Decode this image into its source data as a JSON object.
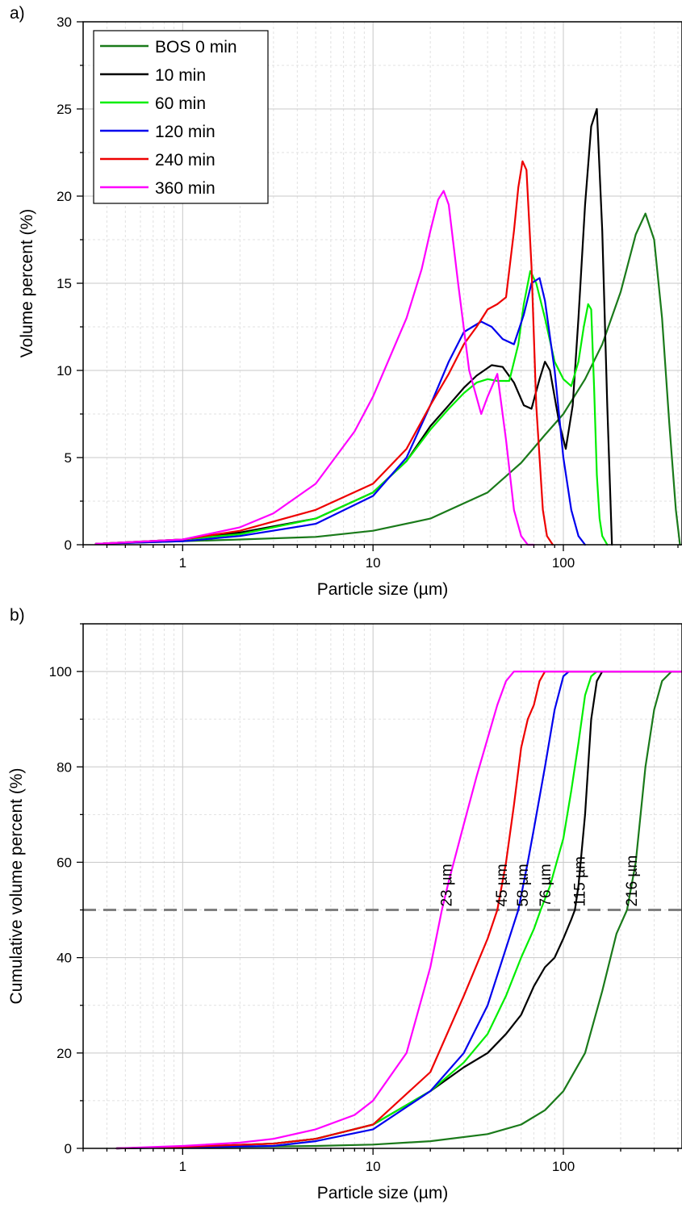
{
  "chart_data": [
    {
      "panel_label": "a)",
      "type": "line",
      "xlabel": "Particle size (µm)",
      "ylabel": "Volume percent (%)",
      "xscale": "log",
      "xlim": [
        0.3,
        420
      ],
      "ylim": [
        0,
        30
      ],
      "xticks": [
        1,
        10,
        100
      ],
      "xtick_labels": [
        "1",
        "10",
        "100"
      ],
      "yticks": [
        0,
        5,
        10,
        15,
        20,
        25,
        30
      ],
      "ytick_labels": [
        "0",
        "5",
        "10",
        "15",
        "20",
        "25",
        "30"
      ],
      "grid": true,
      "legend_position": "top-left",
      "series": [
        {
          "name": "BOS 0 min",
          "color": "#1a7a1a",
          "x": [
            0.35,
            1,
            2,
            5,
            10,
            20,
            40,
            60,
            80,
            100,
            130,
            160,
            200,
            240,
            270,
            300,
            330,
            360,
            390,
            410
          ],
          "y": [
            0.05,
            0.2,
            0.3,
            0.45,
            0.8,
            1.5,
            3,
            4.7,
            6.3,
            7.5,
            9.5,
            11.5,
            14.5,
            17.8,
            19,
            17.5,
            13,
            7,
            2,
            0
          ]
        },
        {
          "name": "10 min",
          "color": "#000000",
          "x": [
            0.35,
            1,
            2,
            5,
            10,
            15,
            20,
            25,
            30,
            35,
            42,
            48,
            55,
            62,
            68,
            75,
            80,
            85,
            95,
            103,
            112,
            120,
            130,
            140,
            150,
            160,
            170,
            180
          ],
          "y": [
            0.05,
            0.3,
            0.7,
            1.5,
            3,
            4.8,
            6.8,
            8,
            9,
            9.7,
            10.3,
            10.2,
            9.3,
            8,
            7.8,
            9.5,
            10.5,
            10,
            7,
            5.5,
            8,
            13,
            19.5,
            24,
            25,
            18,
            8,
            0
          ]
        },
        {
          "name": "60 min",
          "color": "#00ee00",
          "x": [
            0.35,
            1,
            2,
            5,
            10,
            15,
            20,
            25,
            30,
            35,
            40,
            45,
            52,
            58,
            62,
            67,
            72,
            80,
            90,
            100,
            110,
            120,
            128,
            135,
            140,
            145,
            150,
            155,
            160,
            170
          ],
          "y": [
            0.05,
            0.3,
            0.6,
            1.5,
            3,
            4.8,
            6.6,
            7.8,
            8.7,
            9.3,
            9.5,
            9.4,
            9.4,
            11.5,
            13.8,
            15.7,
            15,
            13,
            10.5,
            9.5,
            9.1,
            10.5,
            12.5,
            13.8,
            13.5,
            9,
            4,
            1.5,
            0.5,
            0
          ]
        },
        {
          "name": "120 min",
          "color": "#0000ee",
          "x": [
            0.35,
            1,
            2,
            5,
            10,
            15,
            20,
            25,
            30,
            37,
            42,
            48,
            55,
            62,
            68,
            75,
            80,
            90,
            100,
            110,
            120,
            130
          ],
          "y": [
            0.05,
            0.2,
            0.5,
            1.2,
            2.8,
            5,
            8,
            10.5,
            12.2,
            12.8,
            12.5,
            11.8,
            11.5,
            13.2,
            15,
            15.3,
            14,
            10,
            5,
            2,
            0.5,
            0
          ]
        },
        {
          "name": "240 min",
          "color": "#ee0000",
          "x": [
            0.35,
            1,
            2,
            5,
            10,
            15,
            20,
            25,
            30,
            35,
            40,
            45,
            50,
            55,
            58,
            61,
            64,
            68,
            72,
            78,
            82,
            88
          ],
          "y": [
            0.05,
            0.3,
            0.8,
            2,
            3.5,
            5.5,
            8,
            9.8,
            11.5,
            12.5,
            13.5,
            13.8,
            14.2,
            18,
            20.5,
            22,
            21.5,
            16,
            8,
            2,
            0.5,
            0
          ]
        },
        {
          "name": "360 min",
          "color": "#ff00ff",
          "x": [
            0.35,
            1,
            2,
            3,
            5,
            8,
            10,
            15,
            18,
            20,
            22,
            23.5,
            25,
            28,
            32,
            37,
            40,
            45,
            50,
            55,
            60,
            65,
            70
          ],
          "y": [
            0.05,
            0.3,
            1,
            1.8,
            3.5,
            6.5,
            8.5,
            13,
            15.8,
            18,
            19.8,
            20.3,
            19.5,
            15,
            10,
            7.5,
            8.5,
            9.8,
            6,
            2,
            0.5,
            0,
            0
          ]
        }
      ]
    },
    {
      "panel_label": "b)",
      "type": "line",
      "xlabel": "Particle size (µm)",
      "ylabel": "Cumulative volume percent (%)",
      "xscale": "log",
      "xlim": [
        0.3,
        420
      ],
      "ylim": [
        0,
        110
      ],
      "xticks": [
        1,
        10,
        100
      ],
      "xtick_labels": [
        "1",
        "10",
        "100"
      ],
      "yticks": [
        0,
        20,
        40,
        60,
        80,
        100
      ],
      "ytick_labels": [
        "0",
        "20",
        "40",
        "60",
        "80",
        "100"
      ],
      "grid": true,
      "reference_line_y": 50,
      "reference_line_color": "#808080",
      "series": [
        {
          "color": "#1a7a1a",
          "x": [
            0.45,
            1,
            5,
            10,
            20,
            40,
            60,
            80,
            100,
            130,
            160,
            190,
            216,
            240,
            270,
            300,
            330,
            370,
            410
          ],
          "y": [
            0,
            0.2,
            0.5,
            0.8,
            1.5,
            3,
            5,
            8,
            12,
            20,
            33,
            45,
            50,
            60,
            80,
            92,
            98,
            100,
            100
          ],
          "d50_label": "216 µm"
        },
        {
          "color": "#000000",
          "x": [
            0.45,
            1,
            3,
            5,
            10,
            20,
            30,
            40,
            50,
            60,
            70,
            80,
            90,
            100,
            110,
            115,
            120,
            130,
            140,
            150,
            160,
            420
          ],
          "y": [
            0,
            0.3,
            1,
            2,
            5,
            12,
            17,
            20,
            24,
            28,
            34,
            38,
            40,
            44,
            48,
            50,
            55,
            70,
            90,
            98,
            100,
            100
          ],
          "d50_label": "115 µm"
        },
        {
          "color": "#00ee00",
          "x": [
            0.45,
            1,
            3,
            5,
            10,
            20,
            30,
            40,
            50,
            60,
            70,
            76,
            85,
            100,
            110,
            120,
            130,
            140,
            150,
            420
          ],
          "y": [
            0,
            0.3,
            1,
            2,
            5,
            12,
            18,
            24,
            32,
            40,
            46,
            50,
            55,
            65,
            75,
            85,
            95,
            99,
            100,
            100
          ],
          "d50_label": "76 µm"
        },
        {
          "color": "#0000ee",
          "x": [
            0.45,
            1,
            3,
            5,
            10,
            20,
            30,
            40,
            50,
            58,
            65,
            70,
            80,
            90,
            100,
            107,
            420
          ],
          "y": [
            0,
            0.2,
            0.5,
            1.5,
            4,
            12,
            20,
            30,
            42,
            50,
            60,
            67,
            80,
            92,
            99,
            100,
            100
          ],
          "d50_label": "58 µm"
        },
        {
          "color": "#ee0000",
          "x": [
            0.45,
            1,
            3,
            5,
            10,
            20,
            30,
            40,
            45,
            50,
            55,
            60,
            65,
            70,
            75,
            80,
            420
          ],
          "y": [
            0,
            0.3,
            1,
            2,
            5,
            16,
            32,
            44,
            50,
            60,
            72,
            84,
            90,
            93,
            98,
            100,
            100
          ],
          "d50_label": "45 µm"
        },
        {
          "color": "#ff00ff",
          "x": [
            0.45,
            1,
            2,
            3,
            5,
            8,
            10,
            15,
            20,
            23,
            25,
            30,
            35,
            40,
            45,
            50,
            55,
            420
          ],
          "y": [
            0,
            0.5,
            1.2,
            2,
            4,
            7,
            10,
            20,
            38,
            50,
            56,
            68,
            78,
            86,
            93,
            98,
            100,
            100
          ],
          "d50_label": "23 µm"
        }
      ]
    }
  ]
}
